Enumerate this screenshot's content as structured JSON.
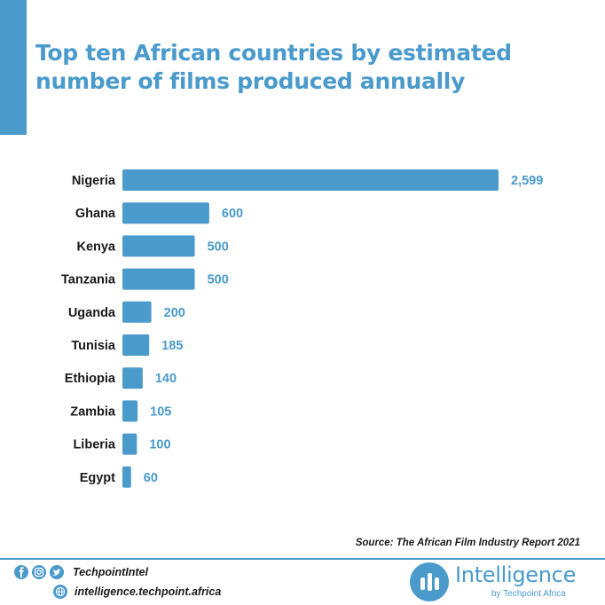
{
  "title": "Top ten African countries by estimated number of films produced annually",
  "source": "Source: The African Film Industry Report 2021",
  "footer": {
    "handle": "TechpointIntel",
    "url": "intelligence.techpoint.africa",
    "brand_name": "Intelligence",
    "brand_sub": "by Techpoint Africa",
    "icons": [
      "facebook-icon",
      "instagram-icon",
      "twitter-icon",
      "globe-icon"
    ]
  },
  "colors": {
    "accent": "#4a9acc",
    "text": "#1a1a1a"
  },
  "chart_data": {
    "type": "bar",
    "orientation": "horizontal",
    "categories": [
      "Nigeria",
      "Ghana",
      "Kenya",
      "Tanzania",
      "Uganda",
      "Tunisia",
      "Ethiopia",
      "Zambia",
      "Liberia",
      "Egypt"
    ],
    "values": [
      2599,
      600,
      500,
      500,
      200,
      185,
      140,
      105,
      100,
      60
    ],
    "value_labels": [
      "2,599",
      "600",
      "500",
      "500",
      "200",
      "185",
      "140",
      "105",
      "100",
      "60"
    ],
    "xlim": [
      0,
      2599
    ],
    "grid": false,
    "legend": "none",
    "bar_color": "#4a9acc"
  }
}
